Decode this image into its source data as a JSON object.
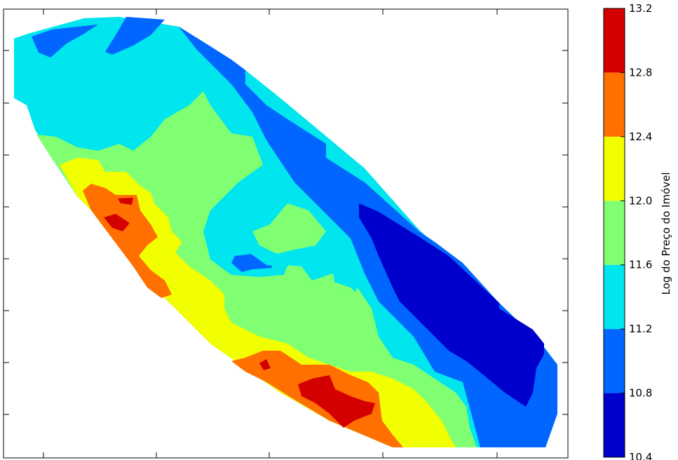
{
  "chart_data": {
    "type": "filled-contour",
    "title": "",
    "xlabel": "",
    "ylabel": "",
    "x_tick_labels_visible": false,
    "y_tick_labels_visible": false,
    "colorbar": {
      "label": "Log do Preço do Imóvel",
      "ticks": [
        "10.4",
        "10.8",
        "11.2",
        "11.6",
        "12.0",
        "12.4",
        "12.8",
        "13.2"
      ],
      "levels": [
        {
          "min": 10.4,
          "max": 10.8,
          "color": "#0000cd"
        },
        {
          "min": 10.8,
          "max": 11.2,
          "color": "#0066ff"
        },
        {
          "min": 11.2,
          "max": 11.6,
          "color": "#00e5ee"
        },
        {
          "min": 11.6,
          "max": 12.0,
          "color": "#80ff73"
        },
        {
          "min": 12.0,
          "max": 12.4,
          "color": "#f2ff00"
        },
        {
          "min": 12.4,
          "max": 12.8,
          "color": "#ff7000"
        },
        {
          "min": 12.8,
          "max": 13.2,
          "color": "#d40000"
        }
      ]
    }
  }
}
